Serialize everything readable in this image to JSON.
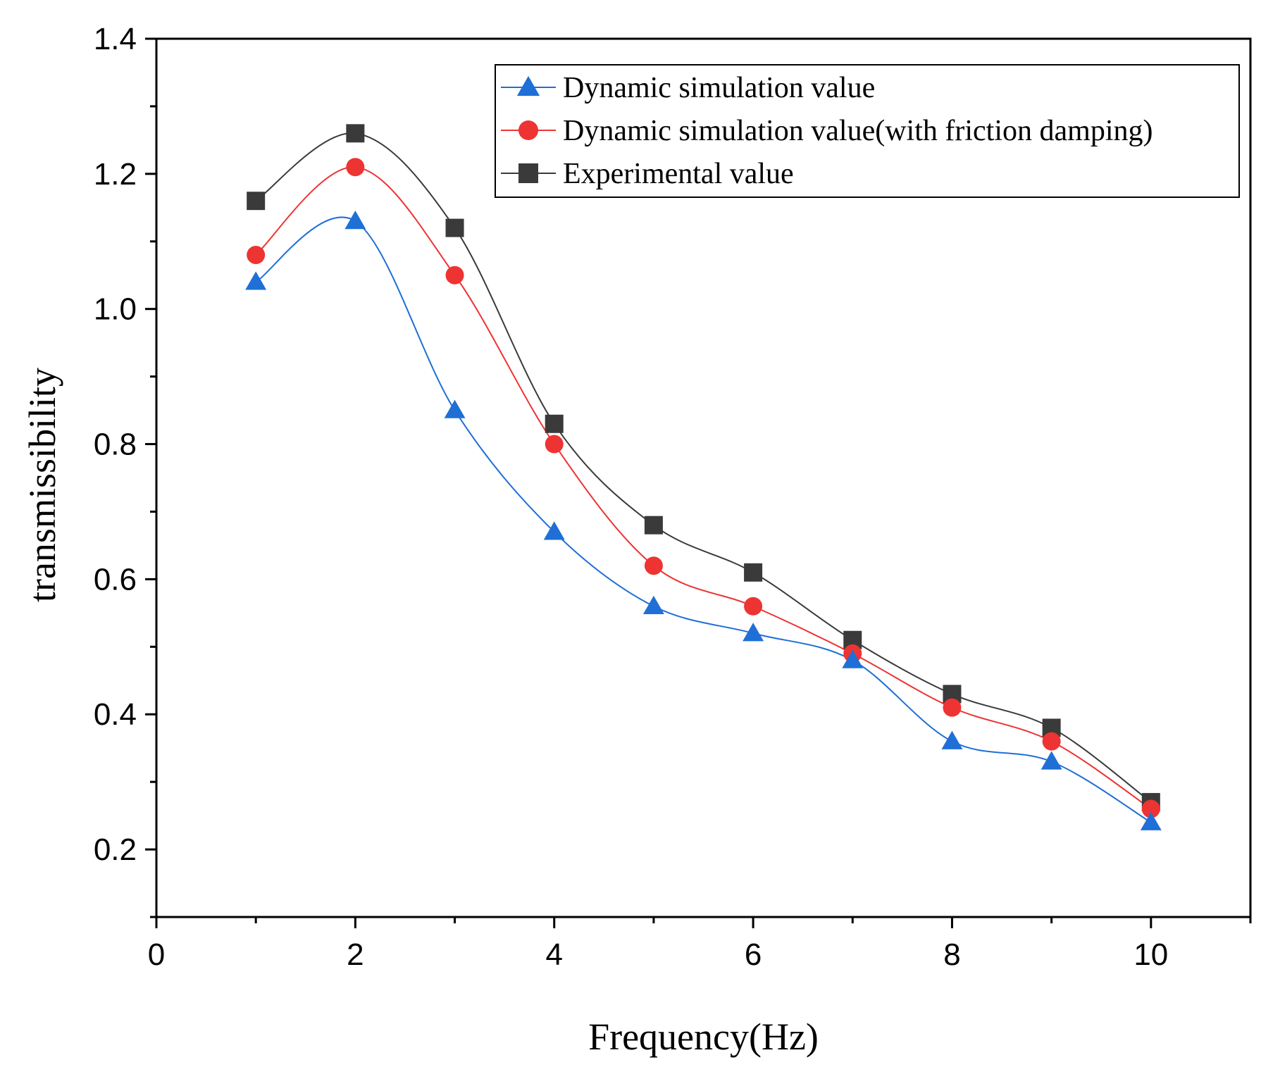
{
  "chart_data": {
    "type": "line",
    "title": "",
    "xlabel": "Frequency(Hz)",
    "ylabel": "transmissibility",
    "xlim": [
      0,
      11
    ],
    "ylim": [
      0.1,
      1.4
    ],
    "xticks": [
      0,
      2,
      4,
      6,
      8,
      10
    ],
    "xtick_labels": [
      "0",
      "2",
      "4",
      "6",
      "8",
      "10"
    ],
    "yticks": [
      0.2,
      0.4,
      0.6,
      0.8,
      1.0,
      1.2,
      1.4
    ],
    "ytick_labels": [
      "0.2",
      "0.4",
      "0.6",
      "0.8",
      "1.0",
      "1.2",
      "1.4"
    ],
    "grid": false,
    "legend_position": "top-right",
    "x": [
      1,
      2,
      3,
      4,
      5,
      6,
      7,
      8,
      9,
      10
    ],
    "series": [
      {
        "name": "Dynamic simulation value",
        "color": "#1f6fd6",
        "marker": "triangle",
        "values": [
          1.04,
          1.13,
          0.85,
          0.67,
          0.56,
          0.52,
          0.48,
          0.36,
          0.33,
          0.24
        ]
      },
      {
        "name": "Dynamic simulation value(with friction damping)",
        "color": "#ee3333",
        "marker": "circle",
        "values": [
          1.08,
          1.21,
          1.05,
          0.8,
          0.62,
          0.56,
          0.49,
          0.41,
          0.36,
          0.26
        ]
      },
      {
        "name": "Experimental value",
        "color": "#3a3a3a",
        "marker": "square",
        "values": [
          1.16,
          1.26,
          1.12,
          0.83,
          0.68,
          0.61,
          0.51,
          0.43,
          0.38,
          0.27
        ]
      }
    ]
  }
}
